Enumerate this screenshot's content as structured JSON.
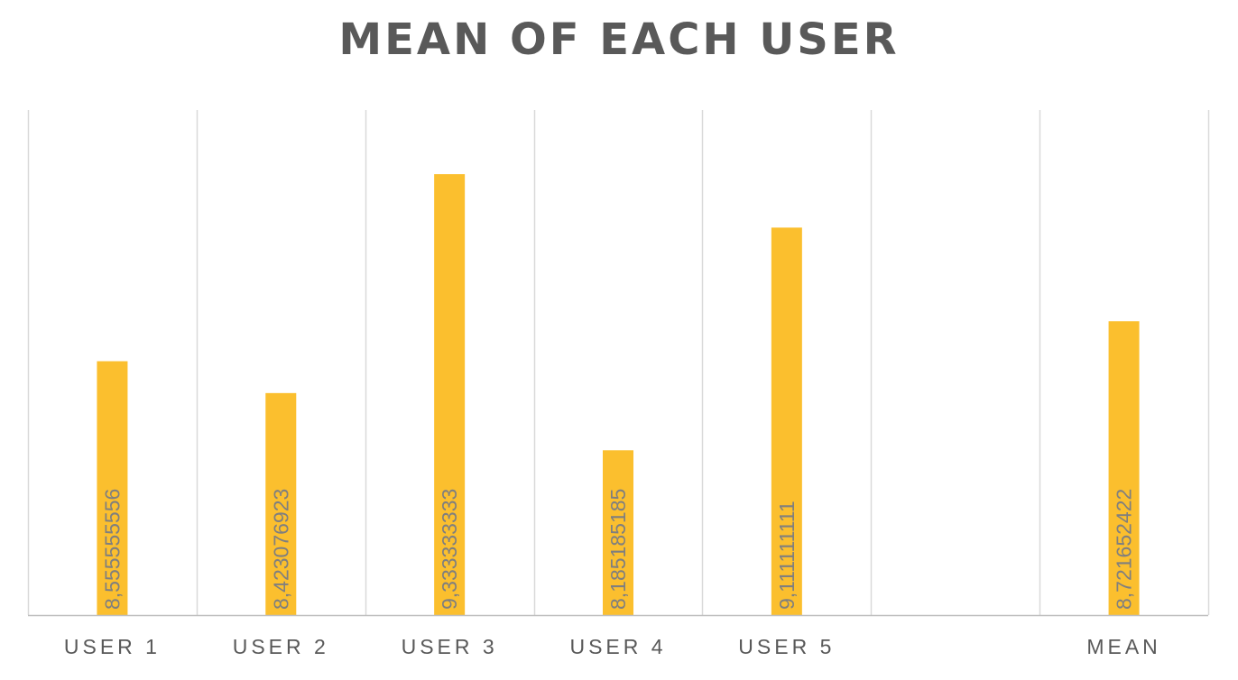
{
  "chart_data": {
    "type": "bar",
    "title": "MEAN OF EACH USER",
    "xlabel": "",
    "ylabel": "",
    "categories": [
      "USER 1",
      "USER 2",
      "USER 3",
      "USER 4",
      "USER 5",
      "",
      "MEAN"
    ],
    "values": [
      8.555555556,
      8.423076923,
      9.333333333,
      8.185185185,
      9.111111111,
      null,
      8.721652422
    ],
    "data_labels": [
      "8,555555556",
      "8,423076923",
      "9,333333333",
      "8,185185185",
      "9,111111111",
      "",
      "8,721652422"
    ],
    "ylim": [
      7.5,
      9.6
    ],
    "grid": "vertical",
    "legend": "none",
    "colors": {
      "bar": "#FBBF2E",
      "grid": "#D9D9D9",
      "axis": "#BFBFBF",
      "text": "#595959",
      "data_label": "#7F7F7F"
    }
  }
}
